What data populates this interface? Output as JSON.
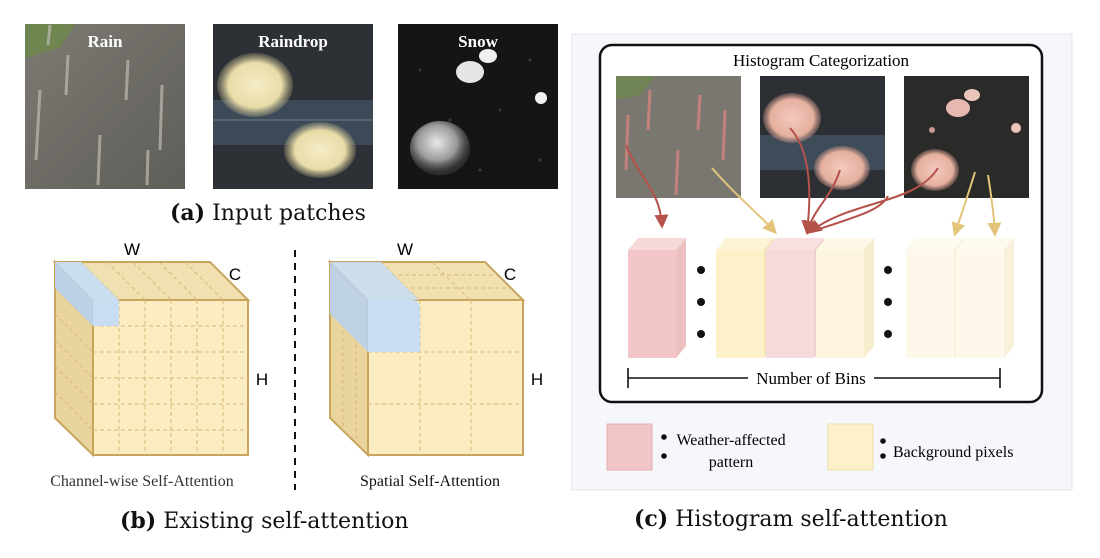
{
  "panel_a": {
    "patches": [
      {
        "label": "Rain"
      },
      {
        "label": "Raindrop"
      },
      {
        "label": "Snow"
      }
    ],
    "caption_tag": "(a)",
    "caption_text": "Input patches"
  },
  "panel_b": {
    "cube_left": {
      "w": "W",
      "c": "C",
      "h": "H",
      "label": "Channel-wise Self-Attention"
    },
    "cube_right": {
      "w": "W",
      "c": "C",
      "h": "H",
      "label": "Spatial Self-Attention"
    },
    "caption_tag": "(b)",
    "caption_text": "Existing self-attention"
  },
  "panel_c": {
    "box_title": "Histogram Categorization",
    "axis_label": "Number of Bins",
    "legend": {
      "weather_label_line1": "Weather-affected",
      "weather_label_line2": "pattern",
      "background_label": "Background pixels"
    },
    "caption_tag": "(c)",
    "caption_text": "Histogram self-attention",
    "colors": {
      "weather": "#f2c6c8",
      "background": "#fdf1c9",
      "arrow_red": "#b5524a",
      "arrow_yellow": "#e3c47a",
      "panel_bg": "#f5f7fb"
    }
  }
}
